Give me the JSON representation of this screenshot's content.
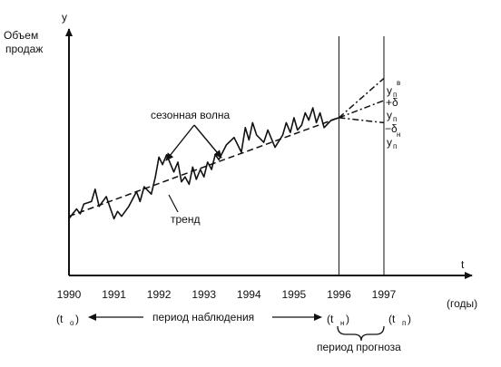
{
  "chart_data": {
    "type": "line",
    "title": "",
    "ylabel_lines": [
      "Объем",
      "продаж"
    ],
    "y_axis_letter": "y",
    "x_axis_letter": "t",
    "xlabel": "(годы)",
    "x_ticks": [
      "1990",
      "1991",
      "1992",
      "1993",
      "1994",
      "1995",
      "1996",
      "1997"
    ],
    "xlim": [
      1990,
      1997
    ],
    "ylim": [
      0,
      10
    ],
    "grid": false,
    "series": [
      {
        "name": "сезонная волна",
        "style": "solid",
        "x": [
          1990.0,
          1990.08,
          1990.17,
          1990.25,
          1990.33,
          1990.5,
          1990.58,
          1990.67,
          1990.83,
          1991.0,
          1991.08,
          1991.17,
          1991.33,
          1991.5,
          1991.58,
          1991.67,
          1991.83,
          1991.92,
          1992.0,
          1992.08,
          1992.17,
          1992.33,
          1992.42,
          1992.5,
          1992.58,
          1992.67,
          1992.75,
          1992.83,
          1992.92,
          1993.0,
          1993.08,
          1993.17,
          1993.25,
          1993.33,
          1993.5,
          1993.67,
          1993.83,
          1993.92,
          1994.0,
          1994.08,
          1994.17,
          1994.33,
          1994.42,
          1994.58,
          1994.75,
          1994.83,
          1994.92,
          1995.0,
          1995.08,
          1995.17,
          1995.25,
          1995.33,
          1995.42,
          1995.5,
          1995.58,
          1995.67,
          1995.83,
          1996.0
        ],
        "values": [
          2.3,
          2.5,
          2.7,
          2.5,
          2.9,
          3.0,
          3.5,
          2.8,
          3.2,
          2.3,
          2.6,
          2.4,
          2.8,
          3.4,
          3.0,
          3.6,
          3.3,
          4.0,
          4.8,
          4.5,
          4.9,
          4.2,
          4.6,
          3.8,
          4.0,
          3.7,
          4.4,
          3.9,
          4.3,
          4.0,
          4.6,
          4.3,
          4.9,
          4.7,
          5.3,
          5.6,
          5.0,
          6.0,
          5.5,
          6.2,
          5.7,
          5.4,
          5.9,
          5.2,
          5.7,
          6.2,
          5.8,
          6.4,
          5.9,
          6.1,
          6.6,
          6.3,
          6.8,
          6.2,
          6.6,
          6.0,
          6.3,
          6.4
        ]
      },
      {
        "name": "тренд",
        "style": "dashed",
        "x": [
          1990,
          1996
        ],
        "values": [
          2.4,
          6.4
        ]
      },
      {
        "name": "y_п",
        "style": "dashdot",
        "x": [
          1996,
          1997
        ],
        "values": [
          6.4,
          7.1
        ]
      },
      {
        "name": "y_п^в",
        "style": "dashdot",
        "x": [
          1996,
          1997
        ],
        "values": [
          6.4,
          8.0
        ]
      },
      {
        "name": "y_п^н",
        "style": "dashdot",
        "x": [
          1996,
          1997
        ],
        "values": [
          6.4,
          6.2
        ]
      }
    ],
    "vertical_lines_at": [
      1996,
      1997
    ],
    "labels": {
      "seasonal": "сезонная волна",
      "trend": "тренд",
      "plus_delta": "+δ",
      "minus_delta": "−δ",
      "forecast_y": "y",
      "forecast_sub": "п",
      "sup_upper": "в",
      "sup_lower": "н",
      "observation_period": "период наблюдения",
      "forecast_period": "период прогноза",
      "t0_paren_open": "(t",
      "t0_sub": "o",
      "paren_close": ")",
      "tn_sub": "н",
      "tp_sub": "п"
    },
    "colors": {
      "ink": "#111111",
      "background": "#ffffff"
    }
  }
}
